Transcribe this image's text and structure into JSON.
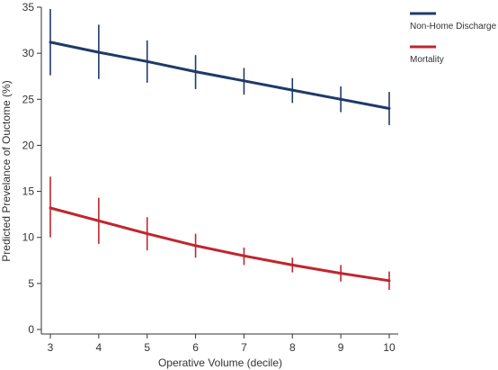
{
  "chart_data": {
    "type": "line",
    "title": "",
    "xlabel": "Operative Volume (decile)",
    "ylabel": "Predicted Prevelance of Ouctome (%)",
    "x": [
      3,
      4,
      5,
      6,
      7,
      8,
      9,
      10
    ],
    "xlim": [
      3,
      10
    ],
    "ylim": [
      0,
      35
    ],
    "x_ticks": [
      3,
      4,
      5,
      6,
      7,
      8,
      9,
      10
    ],
    "y_ticks": [
      0,
      5,
      10,
      15,
      20,
      25,
      30,
      35
    ],
    "grid": false,
    "legend_position": "top-right",
    "series": [
      {
        "name": "Non-Home Discharge",
        "color": "#1f3a68",
        "values": [
          31.2,
          30.1,
          29.1,
          28.0,
          27.0,
          26.0,
          25.0,
          24.0
        ],
        "lower": [
          27.6,
          27.2,
          26.8,
          26.1,
          25.5,
          24.6,
          23.6,
          22.2
        ],
        "upper": [
          34.8,
          33.1,
          31.4,
          29.8,
          28.4,
          27.3,
          26.4,
          25.8
        ]
      },
      {
        "name": "Mortality",
        "color": "#c0262d",
        "values": [
          13.2,
          11.8,
          10.4,
          9.1,
          8.0,
          7.0,
          6.1,
          5.3
        ],
        "lower": [
          10.0,
          9.3,
          8.6,
          7.8,
          7.0,
          6.2,
          5.2,
          4.3
        ],
        "upper": [
          16.6,
          14.3,
          12.2,
          10.4,
          8.9,
          7.8,
          7.0,
          6.3
        ]
      }
    ]
  }
}
